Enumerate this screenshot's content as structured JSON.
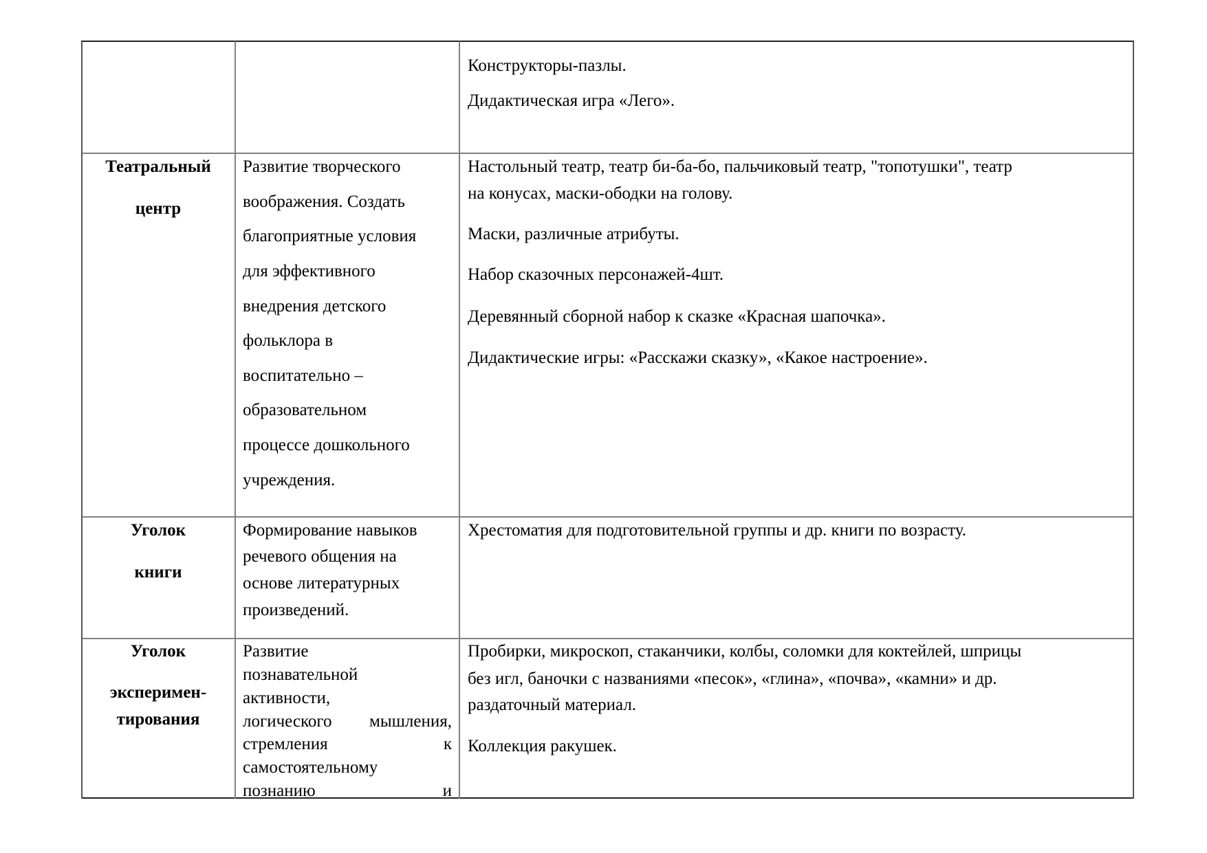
{
  "rows": [
    {
      "center": [],
      "purpose": [],
      "equipment": [
        "Конструкторы-пазлы.",
        "Дидактическая игра «Лего»."
      ]
    },
    {
      "center": [
        "Театральный",
        "центр"
      ],
      "purpose": [
        "Развитие творческого",
        "воображения.  Создать",
        "благоприятные условия",
        "для эффективного",
        "внедрения детского",
        "фольклора в",
        "воспитательно –",
        "образовательном",
        "процессе дошкольного",
        "учреждения."
      ],
      "equipment": [
        "Настольный театр, театр би-ба-бо, пальчиковый театр, \"топотушки\", театр",
        "на конусах, маски-ободки на голову.",
        "Маски, различные атрибуты.",
        "Набор сказочных персонажей-4шт.",
        "Деревянный сборной набор к сказке «Красная шапочка».",
        "Дидактические игры: «Расскажи сказку», «Какое настроение»."
      ]
    },
    {
      "center": [
        "Уголок",
        "книги"
      ],
      "purpose": [
        "Формирование навыков",
        "речевого общения на",
        "основе литературных",
        "произведений."
      ],
      "equipment": [
        "Хрестоматия для подготовительной группы и др. книги по возрасту."
      ]
    },
    {
      "center": [
        "Уголок",
        "эксперимен-",
        "тирования"
      ],
      "purpose": [
        "Развитие",
        "познавательной",
        "активности,",
        "логического мышления,",
        "стремления к",
        "самостоятельному",
        "познанию и"
      ],
      "equipment": [
        "Пробирки, микроскоп, стаканчики, колбы, соломки для коктейлей, шприцы",
        "без игл, баночки с названиями «песок», «глина», «почва», «камни» и  др.",
        "раздаточный материал.",
        "Коллекция ракушек."
      ]
    }
  ]
}
